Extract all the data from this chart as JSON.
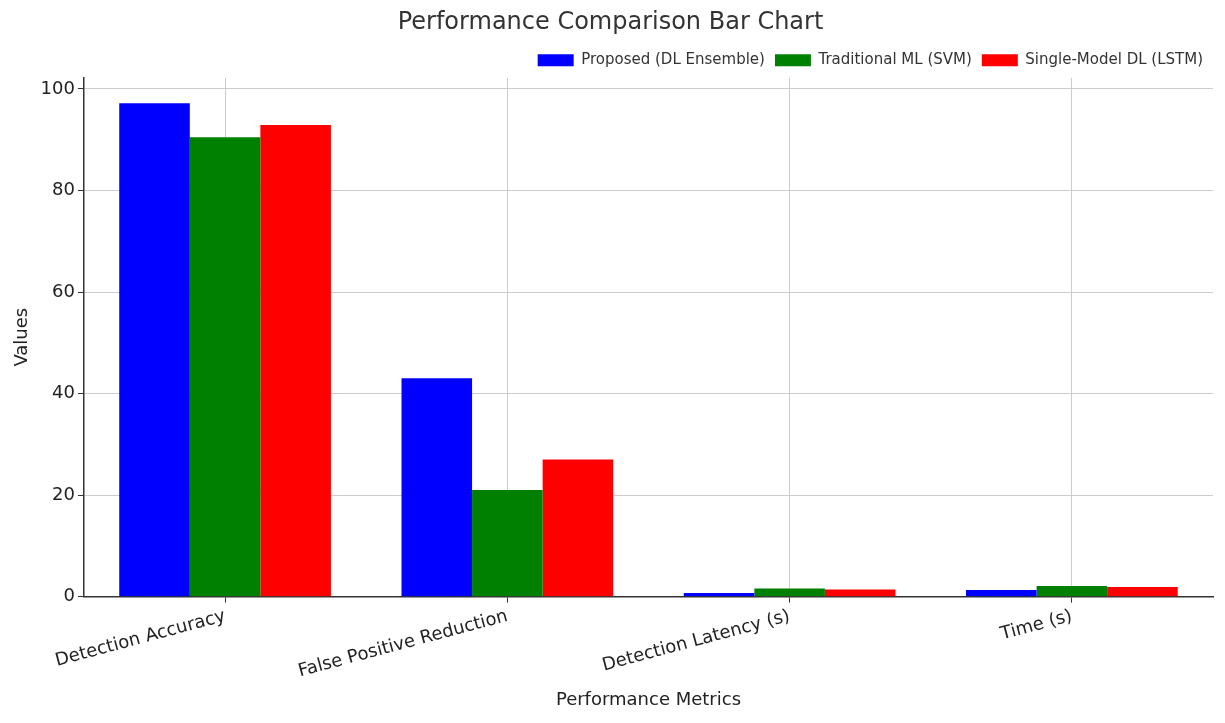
{
  "chart_data": {
    "type": "bar",
    "title": "Performance Comparison Bar Chart",
    "xlabel": "Performance Metrics",
    "ylabel": "Values",
    "categories": [
      "Detection Accuracy",
      "False Positive Reduction",
      "Detection Latency (s)",
      "Time (s)"
    ],
    "series": [
      {
        "name": "Proposed (DL Ensemble)",
        "color": "#0000ff",
        "values": [
          97.2,
          43,
          0.7,
          1.3
        ]
      },
      {
        "name": "Traditional ML (SVM)",
        "color": "#008000",
        "values": [
          90.5,
          21,
          1.6,
          2.1
        ]
      },
      {
        "name": "Single-Model DL (LSTM)",
        "color": "#ff0000",
        "values": [
          92.9,
          27,
          1.4,
          1.9
        ]
      }
    ],
    "ylim": [
      0,
      102.2
    ],
    "yticks": [
      0,
      20,
      40,
      60,
      80,
      100
    ],
    "grid": true,
    "legend": "top right"
  }
}
